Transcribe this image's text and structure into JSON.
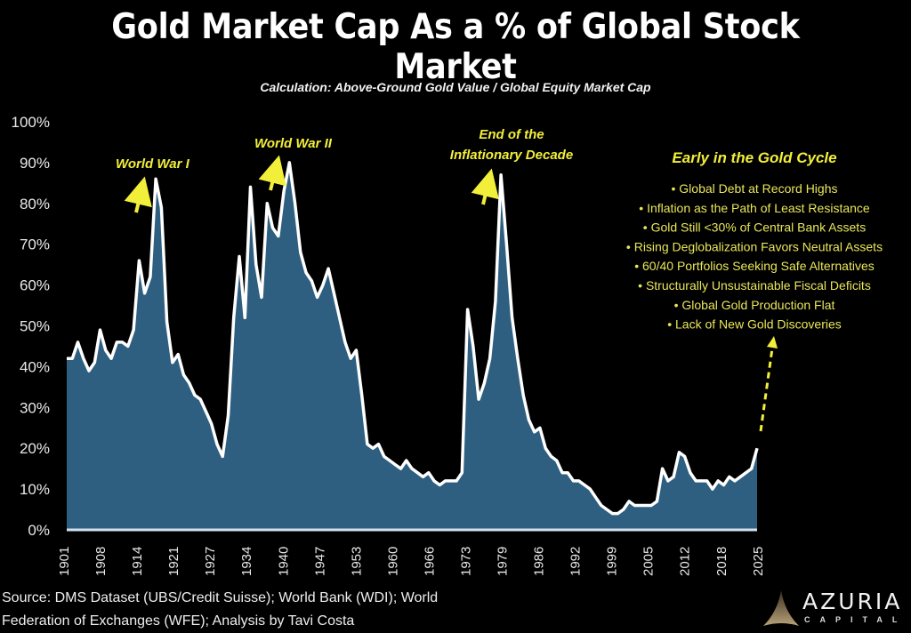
{
  "header": {
    "title": "Gold Market Cap As a % of Global Stock Market",
    "subtitle": "Calculation: Above-Ground Gold Value / Global Equity Market Cap"
  },
  "chart_data": {
    "type": "area",
    "title": "Gold Market Cap As a % of Global Stock Market",
    "subtitle": "Calculation: Above-Ground Gold Value / Global Equity Market Cap",
    "xlabel": "",
    "ylabel": "",
    "xlim": [
      1901,
      2025
    ],
    "ylim": [
      0,
      100
    ],
    "y_ticks": [
      0,
      10,
      20,
      30,
      40,
      50,
      60,
      70,
      80,
      90,
      100
    ],
    "y_tick_labels": [
      "0%",
      "10%",
      "20%",
      "30%",
      "40%",
      "50%",
      "60%",
      "70%",
      "80%",
      "90%",
      "100%"
    ],
    "x_tick_labels": [
      "1901",
      "1908",
      "1914",
      "1921",
      "1927",
      "1934",
      "1940",
      "1947",
      "1953",
      "1960",
      "1966",
      "1973",
      "1979",
      "1986",
      "1992",
      "1999",
      "2005",
      "2012",
      "2018",
      "2025"
    ],
    "grid": false,
    "legend": "none",
    "colors": {
      "fill": "#2e5f80",
      "line": "#ffffff",
      "annotation": "#f2ef3a"
    },
    "series": [
      {
        "name": "Gold Market Cap % of Global Stock Market",
        "x": [
          1901,
          1902,
          1903,
          1904,
          1905,
          1906,
          1907,
          1908,
          1909,
          1910,
          1911,
          1912,
          1913,
          1914,
          1915,
          1916,
          1917,
          1918,
          1919,
          1920,
          1921,
          1922,
          1923,
          1924,
          1925,
          1926,
          1927,
          1928,
          1929,
          1930,
          1931,
          1932,
          1933,
          1934,
          1935,
          1936,
          1937,
          1938,
          1939,
          1940,
          1941,
          1942,
          1943,
          1944,
          1945,
          1946,
          1947,
          1948,
          1949,
          1950,
          1951,
          1952,
          1953,
          1954,
          1955,
          1956,
          1957,
          1958,
          1959,
          1960,
          1961,
          1962,
          1963,
          1964,
          1965,
          1966,
          1967,
          1968,
          1969,
          1970,
          1971,
          1972,
          1973,
          1974,
          1975,
          1976,
          1977,
          1978,
          1979,
          1980,
          1981,
          1982,
          1983,
          1984,
          1985,
          1986,
          1987,
          1988,
          1989,
          1990,
          1991,
          1992,
          1993,
          1994,
          1995,
          1996,
          1997,
          1998,
          1999,
          2000,
          2001,
          2002,
          2003,
          2004,
          2005,
          2006,
          2007,
          2008,
          2009,
          2010,
          2011,
          2012,
          2013,
          2014,
          2015,
          2016,
          2017,
          2018,
          2019,
          2020,
          2021,
          2022,
          2023,
          2024,
          2025
        ],
        "values": [
          42,
          42,
          46,
          42,
          39,
          41,
          49,
          44,
          42,
          46,
          46,
          45,
          49,
          66,
          58,
          62,
          86,
          79,
          51,
          41,
          43,
          38,
          36,
          33,
          32,
          29,
          26,
          21,
          18,
          28,
          52,
          67,
          52,
          84,
          65,
          57,
          80,
          74,
          72,
          83,
          90,
          80,
          68,
          63,
          61,
          57,
          60,
          64,
          58,
          52,
          46,
          42,
          44,
          33,
          21,
          20,
          21,
          18,
          17,
          16,
          15,
          17,
          15,
          14,
          13,
          14,
          12,
          11,
          12,
          12,
          12,
          14,
          54,
          45,
          32,
          36,
          42,
          56,
          87,
          70,
          52,
          42,
          33,
          27,
          24,
          25,
          20,
          18,
          17,
          14,
          14,
          12,
          12,
          11,
          10,
          8,
          6,
          5,
          4,
          4,
          5,
          7,
          6,
          6,
          6,
          6,
          7,
          15,
          12,
          13,
          19,
          18,
          14,
          12,
          12,
          12,
          10,
          12,
          11,
          13,
          12,
          13,
          14,
          15,
          20
        ]
      }
    ],
    "annotations": [
      {
        "text": "World War I",
        "year": 1916
      },
      {
        "text": "World War II",
        "year": 1939
      },
      {
        "text": "End of the Inflationary Decade",
        "lines": [
          "End of the",
          "Inflationary Decade"
        ],
        "year": 1978
      }
    ],
    "sidebar_note": {
      "title": "Early in the Gold Cycle",
      "items": [
        "Global Debt at Record Highs",
        "Inflation as the Path of Least Resistance",
        "Gold Still <30% of Central Bank Assets",
        "Rising Deglobalization Favors Neutral Assets",
        "60/40 Portfolios Seeking Safe Alternatives",
        "Structurally Unsustainable Fiscal Deficits",
        "Global Gold Production Flat",
        "Lack of New Gold Discoveries"
      ]
    }
  },
  "footer": {
    "source_line1": "Source: DMS Dataset (UBS/Credit Suisse); World Bank (WDI); World",
    "source_line2": "Federation of Exchanges (WFE); Analysis by Tavi Costa",
    "logo_name": "AZURIA",
    "logo_sub": "CAPITAL"
  }
}
